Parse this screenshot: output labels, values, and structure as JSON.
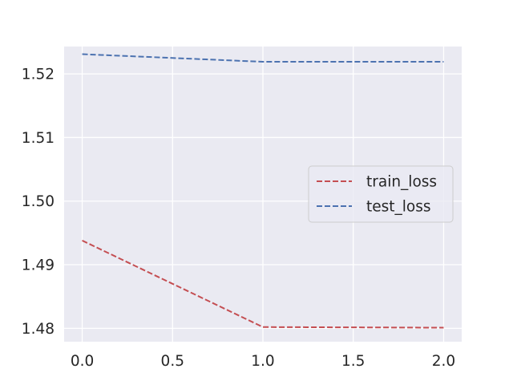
{
  "chart_data": {
    "type": "line",
    "title": "",
    "xlabel": "",
    "ylabel": "",
    "xlim": [
      -0.1,
      2.1
    ],
    "ylim": [
      1.4779,
      1.5243
    ],
    "xticks": [
      "0.0",
      "0.5",
      "1.0",
      "1.5",
      "2.0"
    ],
    "xtick_values": [
      0.0,
      0.5,
      1.0,
      1.5,
      2.0
    ],
    "yticks": [
      "1.48",
      "1.49",
      "1.50",
      "1.51",
      "1.52"
    ],
    "ytick_values": [
      1.48,
      1.49,
      1.5,
      1.51,
      1.52
    ],
    "x": [
      0,
      1,
      2
    ],
    "series": [
      {
        "name": "train_loss",
        "values": [
          1.4938,
          1.4802,
          1.4801
        ],
        "color": "#c44e52",
        "linestyle": "dashed"
      },
      {
        "name": "test_loss",
        "values": [
          1.5231,
          1.5219,
          1.5219
        ],
        "color": "#4c72b0",
        "linestyle": "dashed"
      }
    ],
    "grid": true,
    "background": "#eaeaf2",
    "legend_position": "center-right"
  }
}
